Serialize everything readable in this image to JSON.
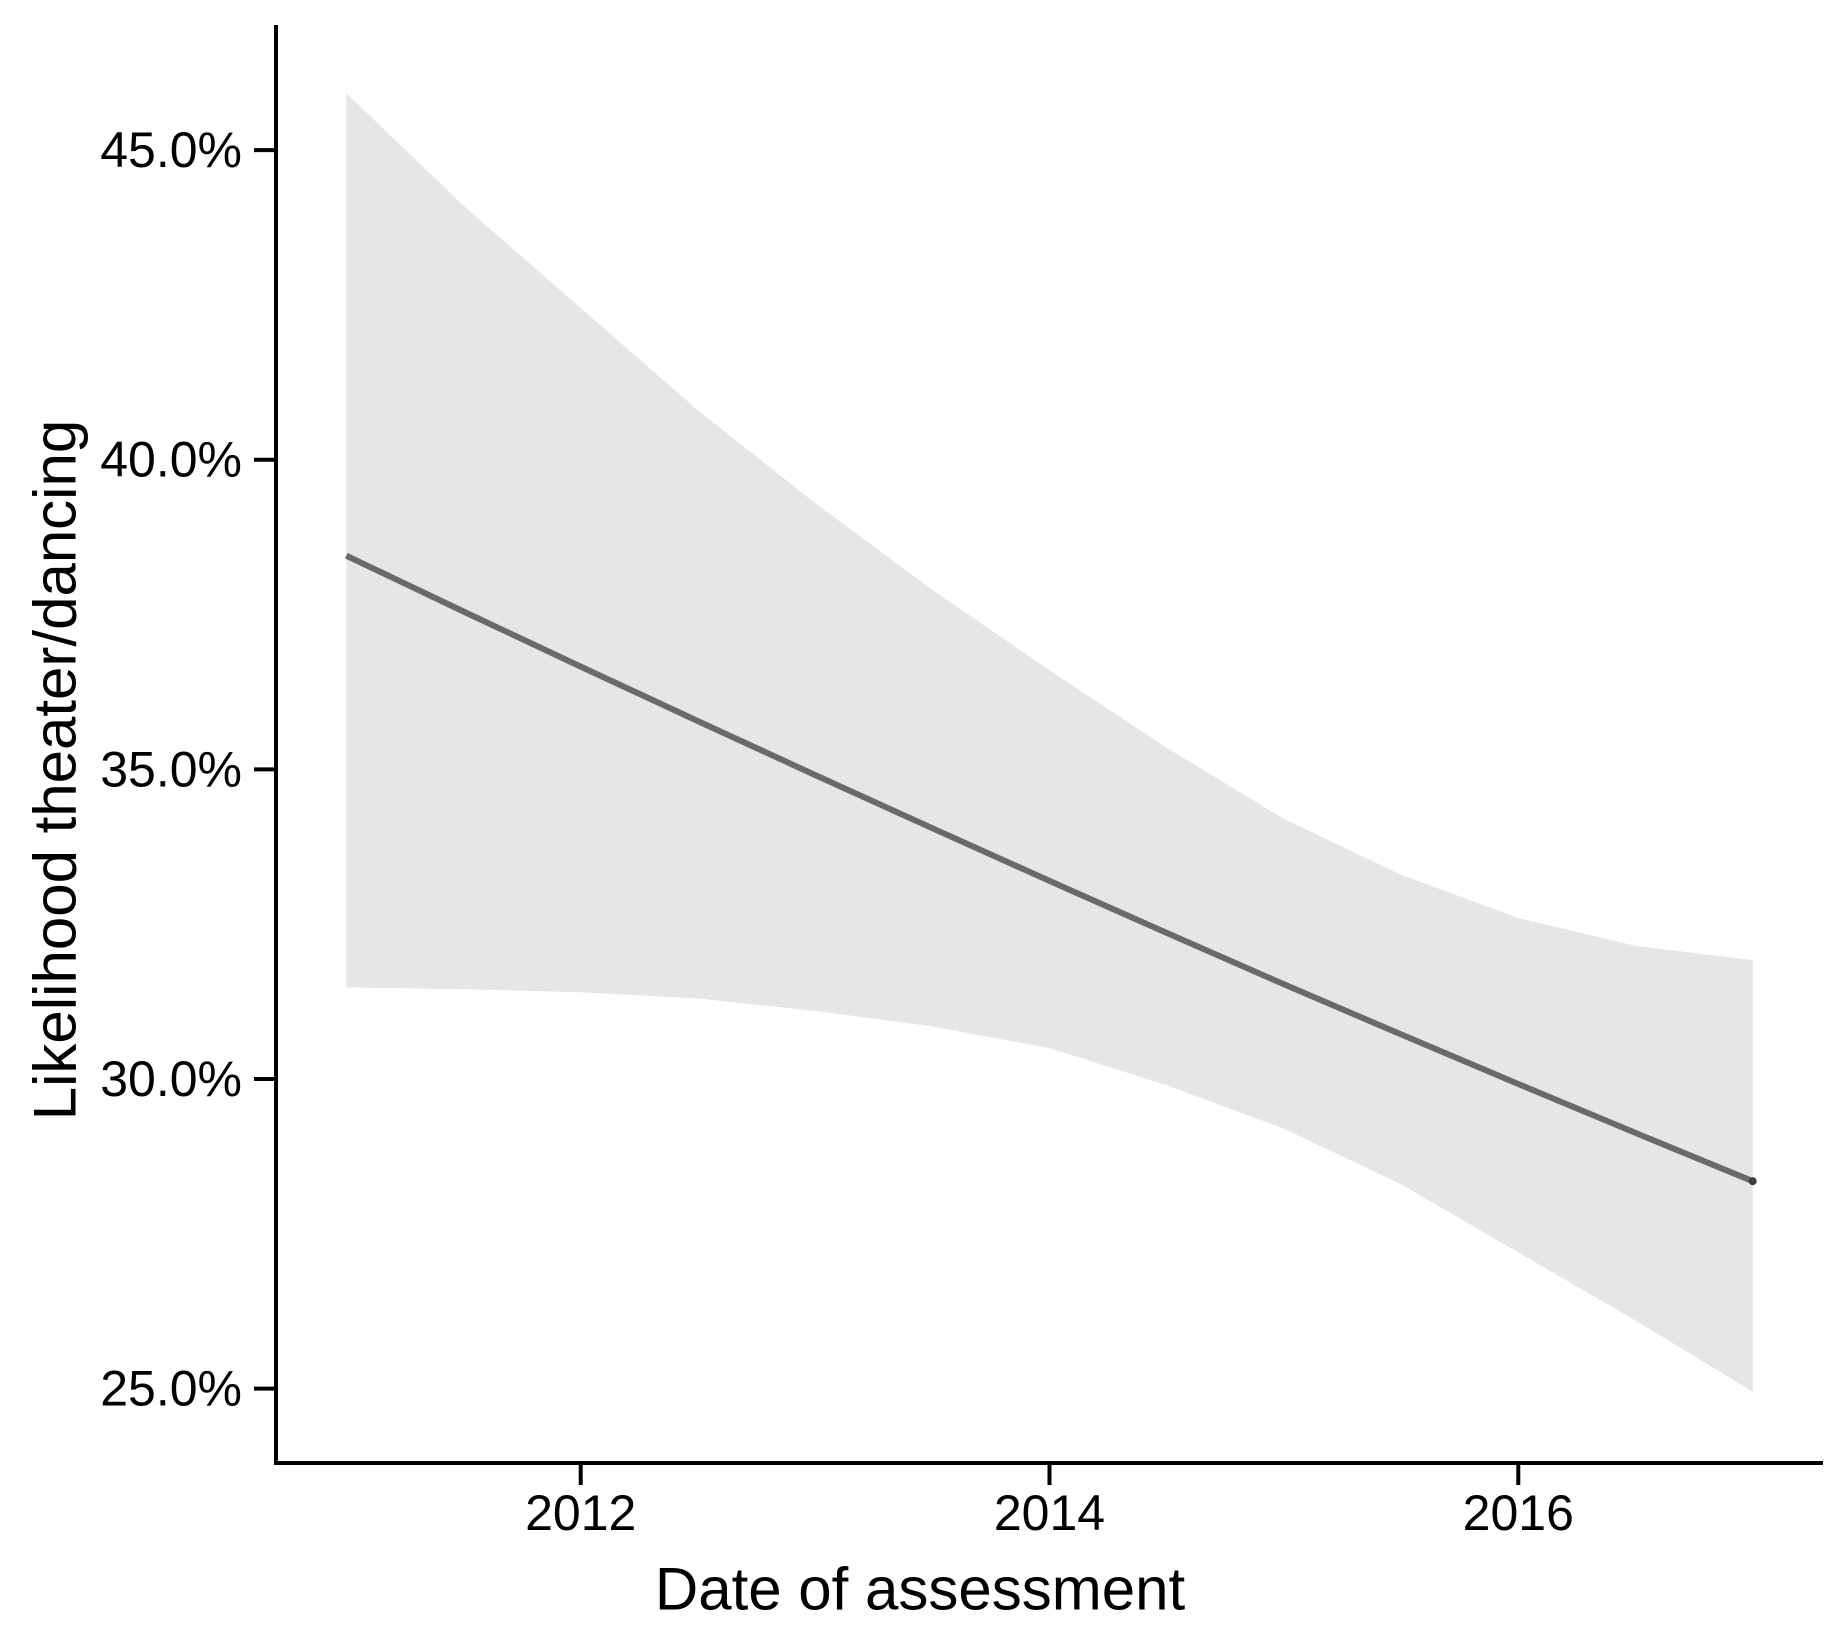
{
  "chart": {
    "y_axis": {
      "title": "Likelihood theater/dancing",
      "ticks": [
        {
          "label": "45.0%",
          "value": 45.0
        },
        {
          "label": "40.0%",
          "value": 40.0
        },
        {
          "label": "35.0%",
          "value": 35.0
        },
        {
          "label": "30.0%",
          "value": 30.0
        },
        {
          "label": "25.0%",
          "value": 25.0
        }
      ]
    },
    "x_axis": {
      "title": "Date of assessment",
      "ticks": [
        {
          "label": "2012",
          "value": 2012
        },
        {
          "label": "2014",
          "value": 2014
        },
        {
          "label": "2016",
          "value": 2016
        }
      ]
    }
  },
  "chart_data": {
    "type": "line",
    "title": "",
    "xlabel": "Date of assessment",
    "ylabel": "Likelihood theater/dancing",
    "x": [
      2011,
      2011.5,
      2012,
      2012.5,
      2013,
      2013.5,
      2014,
      2014.5,
      2015,
      2015.5,
      2016,
      2016.5,
      2017
    ],
    "series": [
      {
        "name": "fitted_likelihood_pct",
        "role": "line",
        "values": [
          38.45,
          37.55,
          36.66,
          35.78,
          34.91,
          34.05,
          33.2,
          32.36,
          31.53,
          30.72,
          29.92,
          29.13,
          28.35
        ]
      },
      {
        "name": "ci_upper_pct",
        "role": "ribbon-upper",
        "values": [
          45.92,
          44.1,
          42.45,
          40.8,
          39.3,
          37.9,
          36.6,
          35.35,
          34.2,
          33.3,
          32.6,
          32.15,
          31.92
        ]
      },
      {
        "name": "ci_lower_pct",
        "role": "ribbon-lower",
        "values": [
          31.48,
          31.45,
          31.4,
          31.3,
          31.1,
          30.85,
          30.5,
          29.9,
          29.2,
          28.3,
          27.2,
          26.1,
          24.95
        ]
      }
    ],
    "end_point": {
      "x": 2017,
      "value": 28.35
    },
    "xlim": [
      2010.7,
      2017.3
    ],
    "ylim": [
      23.8,
      47.02
    ],
    "x_ticks": [
      2012,
      2014,
      2016
    ],
    "y_ticks": [
      25,
      30,
      35,
      40,
      45
    ],
    "grid": false,
    "legend": false,
    "colors": {
      "line": "#6a6a6a",
      "ribbon": "#e6e6e6",
      "axis": "#000000",
      "text": "#000000",
      "end_dot": "#3c3c3c",
      "background": "#ffffff"
    }
  }
}
